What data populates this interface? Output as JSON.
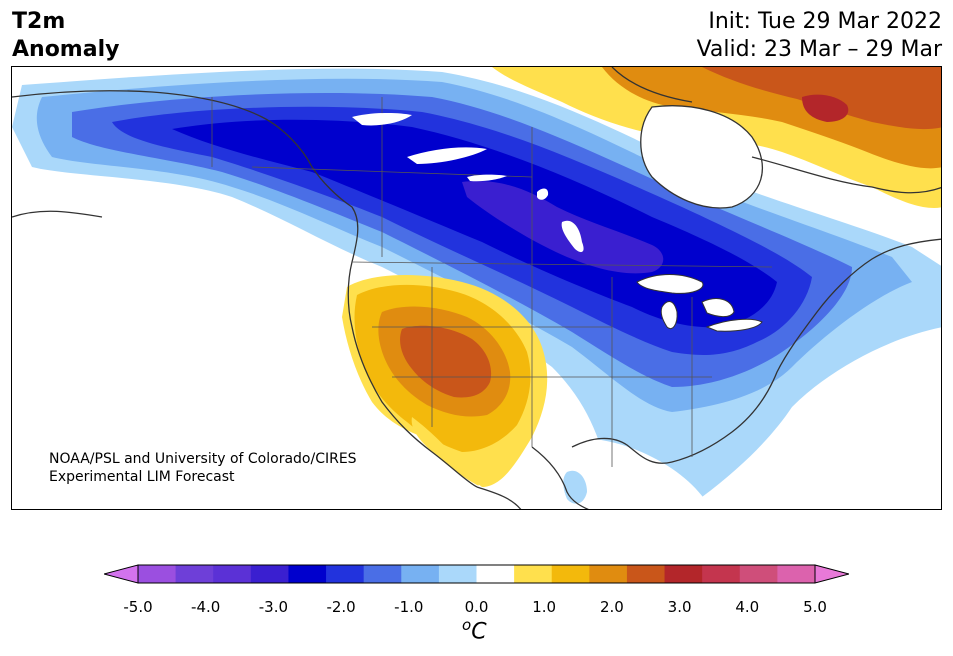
{
  "title": {
    "variable": "T2m",
    "subtitle": "Anomaly",
    "init": "Init: Tue 29 Mar 2022",
    "valid": "Valid: 23 Mar – 29 Mar"
  },
  "credit": {
    "line1": "NOAA/PSL and University of Colorado/CIRES",
    "line2": "Experimental LIM Forecast"
  },
  "colorbar": {
    "unit_base": "C",
    "unit_sup": "o",
    "ticks": [
      "-5.0",
      "-4.0",
      "-3.0",
      "-2.0",
      "-1.0",
      "0.0",
      "1.0",
      "2.0",
      "3.0",
      "4.0",
      "5.0"
    ],
    "bins": [
      {
        "range": "-5.0 to -4.5",
        "color": "#9b4fe0"
      },
      {
        "range": "-4.5 to -4.0",
        "color": "#6e3fd8"
      },
      {
        "range": "-4.0 to -3.5",
        "color": "#5b31d6"
      },
      {
        "range": "-3.5 to -3.0",
        "color": "#3a1fd0"
      },
      {
        "range": "-3.0 to -2.5",
        "color": "#0000cd"
      },
      {
        "range": "-2.5 to -2.0",
        "color": "#2233dd"
      },
      {
        "range": "-2.0 to -1.5",
        "color": "#4a6ee6"
      },
      {
        "range": "-1.5 to -1.0",
        "color": "#77b1f2"
      },
      {
        "range": "-1.0 to -0.5",
        "color": "#aad8fa"
      },
      {
        "range": "-0.5 to 0.5",
        "color": "#ffffff"
      },
      {
        "range": "0.5 to 1.0",
        "color": "#ffe04d"
      },
      {
        "range": "1.0 to 1.5",
        "color": "#f3b90c"
      },
      {
        "range": "1.5 to 2.0",
        "color": "#e08c10"
      },
      {
        "range": "2.0 to 2.5",
        "color": "#c9561a"
      },
      {
        "range": "2.5 to 3.0",
        "color": "#b3262a"
      },
      {
        "range": "3.0 to 3.5",
        "color": "#c4354e"
      },
      {
        "range": "3.5 to 4.0",
        "color": "#cf4e7a"
      },
      {
        "range": "4.0 to 4.5",
        "color": "#dc62ad"
      }
    ],
    "extend_low_color": "#d373ee",
    "extend_high_color": "#e879d8"
  }
}
